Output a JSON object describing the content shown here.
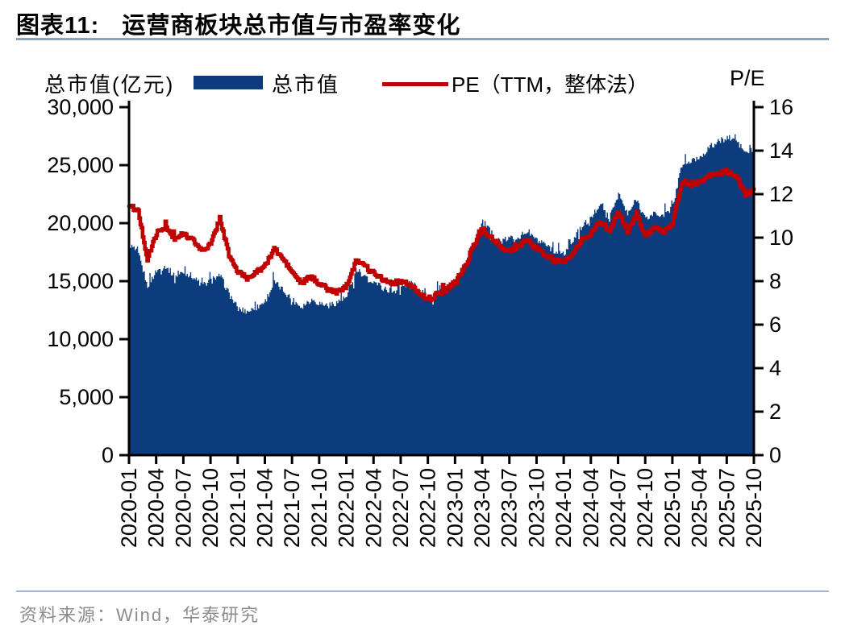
{
  "header": {
    "figure_label": "图表11:",
    "figure_title": "运营商板块总市值与市盈率变化"
  },
  "legend": {
    "left_axis_unit": "总市值(亿元)",
    "series1_label": "总市值",
    "series2_label": "PE（TTM，整体法）",
    "right_axis_unit": "P/E"
  },
  "footer": {
    "source": "资料来源：Wind，华泰研究"
  },
  "colors": {
    "market_cap_fill": "#0c3c7c",
    "pe_line": "#c00000",
    "axis": "#000000",
    "separator_top": "#8ca6c0",
    "separator_bottom": "#a3b8cc",
    "source_text": "#8c8c8c"
  },
  "chart_data": {
    "type": "area-line-dual-axis",
    "title": "运营商板块总市值与市盈率变化",
    "x_tick_labels": [
      "2020-01",
      "2020-04",
      "2020-07",
      "2020-10",
      "2021-01",
      "2021-04",
      "2021-07",
      "2021-10",
      "2022-01",
      "2022-04",
      "2022-07",
      "2022-10",
      "2023-01",
      "2023-04",
      "2023-07",
      "2023-10",
      "2024-01",
      "2024-04",
      "2024-07",
      "2024-10",
      "2025-01",
      "2025-04",
      "2025-07",
      "2025-10"
    ],
    "x_monthly": [
      "2020-01",
      "2020-02",
      "2020-03",
      "2020-04",
      "2020-05",
      "2020-06",
      "2020-07",
      "2020-08",
      "2020-09",
      "2020-10",
      "2020-11",
      "2020-12",
      "2021-01",
      "2021-02",
      "2021-03",
      "2021-04",
      "2021-05",
      "2021-06",
      "2021-07",
      "2021-08",
      "2021-09",
      "2021-10",
      "2021-11",
      "2021-12",
      "2022-01",
      "2022-02",
      "2022-03",
      "2022-04",
      "2022-05",
      "2022-06",
      "2022-07",
      "2022-08",
      "2022-09",
      "2022-10",
      "2022-11",
      "2022-12",
      "2023-01",
      "2023-02",
      "2023-03",
      "2023-04",
      "2023-05",
      "2023-06",
      "2023-07",
      "2023-08",
      "2023-09",
      "2023-10",
      "2023-11",
      "2023-12",
      "2024-01",
      "2024-02",
      "2024-03",
      "2024-04",
      "2024-05",
      "2024-06",
      "2024-07",
      "2024-08",
      "2024-09",
      "2024-10",
      "2024-11",
      "2024-12",
      "2025-01",
      "2025-02",
      "2025-03",
      "2025-04",
      "2025-05",
      "2025-06",
      "2025-07",
      "2025-08",
      "2025-09",
      "2025-10"
    ],
    "series": [
      {
        "name": "总市值",
        "axis": "left",
        "unit": "亿元",
        "type": "area",
        "values": [
          18200,
          17300,
          14600,
          15900,
          16300,
          15400,
          15800,
          15400,
          14600,
          15000,
          15500,
          13900,
          12600,
          12400,
          12700,
          13300,
          14900,
          14200,
          13400,
          12800,
          13400,
          13100,
          12900,
          13200,
          13600,
          15800,
          15300,
          15000,
          14400,
          14100,
          14400,
          14900,
          14300,
          13400,
          13900,
          14300,
          15000,
          16300,
          18200,
          20200,
          19100,
          18400,
          18700,
          18900,
          19300,
          18500,
          18000,
          17500,
          17400,
          18600,
          19800,
          20400,
          21800,
          20400,
          22600,
          20700,
          22100,
          20300,
          20900,
          20500,
          21500,
          25000,
          25300,
          25700,
          26500,
          27000,
          27400,
          27100,
          26100,
          25900
        ]
      },
      {
        "name": "PE（TTM，整体法）",
        "axis": "right",
        "type": "line",
        "values": [
          11.5,
          11.2,
          9.0,
          10.2,
          10.5,
          9.9,
          10.2,
          9.9,
          9.4,
          9.7,
          10.9,
          9.2,
          8.4,
          8.2,
          8.4,
          8.7,
          9.5,
          9.0,
          8.4,
          7.9,
          8.2,
          7.9,
          7.6,
          7.5,
          7.8,
          9.0,
          8.7,
          8.4,
          8.1,
          7.9,
          8.0,
          7.8,
          7.5,
          7.1,
          7.4,
          7.6,
          8.0,
          8.6,
          9.6,
          10.4,
          10.0,
          9.5,
          9.4,
          9.6,
          9.9,
          9.5,
          9.2,
          8.9,
          8.9,
          9.3,
          9.9,
          10.2,
          10.8,
          10.3,
          11.2,
          10.3,
          11.1,
          10.1,
          10.5,
          10.2,
          10.7,
          12.5,
          12.5,
          12.6,
          12.85,
          12.95,
          13.05,
          12.8,
          12.0,
          12.15
        ]
      }
    ],
    "y_left": {
      "min": 0,
      "max": 30000,
      "tick_step": 5000,
      "tick_values": [
        0,
        5000,
        10000,
        15000,
        20000,
        25000,
        30000
      ],
      "tick_labels": [
        "0",
        "5,000",
        "10,000",
        "15,000",
        "20,000",
        "25,000",
        "30,000"
      ]
    },
    "y_right": {
      "min": 0,
      "max": 16,
      "tick_step": 2,
      "tick_values": [
        0,
        2,
        4,
        6,
        8,
        10,
        12,
        14,
        16
      ],
      "tick_labels": [
        "0",
        "2",
        "4",
        "6",
        "8",
        "10",
        "12",
        "14",
        "16"
      ]
    },
    "grid": false,
    "legend_position": "top"
  }
}
